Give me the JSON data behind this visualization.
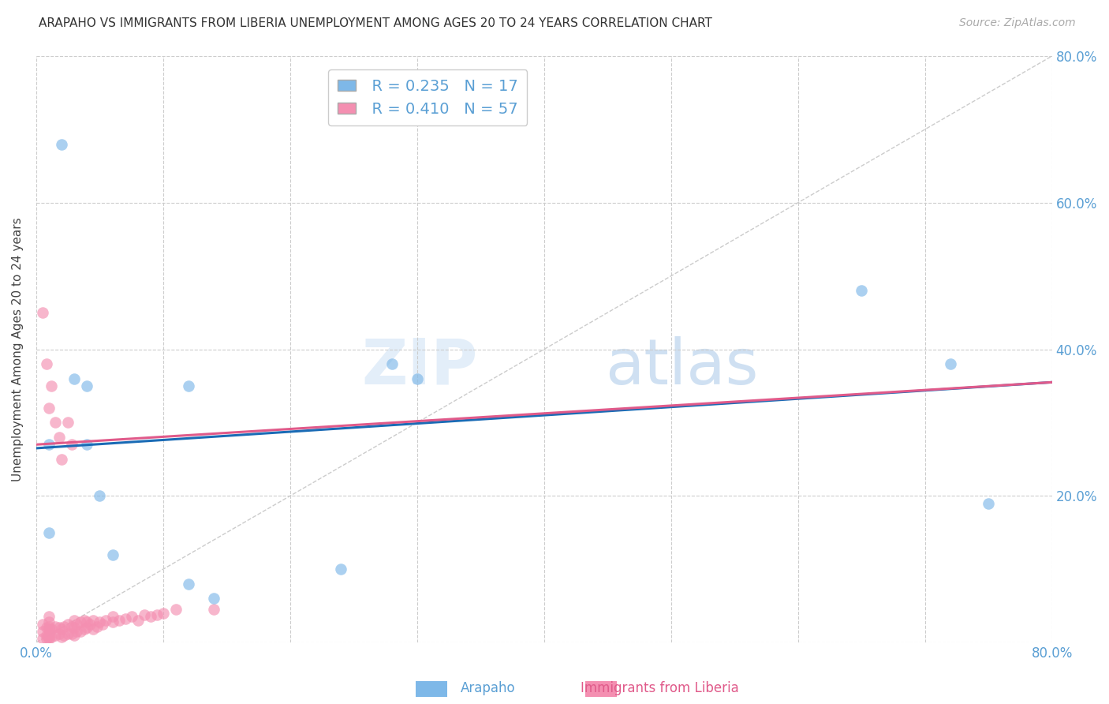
{
  "title": "ARAPAHO VS IMMIGRANTS FROM LIBERIA UNEMPLOYMENT AMONG AGES 20 TO 24 YEARS CORRELATION CHART",
  "source": "Source: ZipAtlas.com",
  "ylabel": "Unemployment Among Ages 20 to 24 years",
  "xlim": [
    0.0,
    0.8
  ],
  "ylim": [
    0.0,
    0.8
  ],
  "xticks": [
    0.0,
    0.1,
    0.2,
    0.3,
    0.4,
    0.5,
    0.6,
    0.7,
    0.8
  ],
  "yticks_right": [
    0.0,
    0.2,
    0.4,
    0.6,
    0.8
  ],
  "ytick_labels_right": [
    "",
    "20.0%",
    "40.0%",
    "60.0%",
    "80.0%"
  ],
  "color_arapaho": "#7eb8e8",
  "color_liberia": "#f48fb1",
  "color_line_arapaho": "#1a6bb5",
  "color_line_liberia": "#e05a8a",
  "legend_r_arapaho": "R = 0.235",
  "legend_n_arapaho": "N = 17",
  "legend_r_liberia": "R = 0.410",
  "legend_n_liberia": "N = 57",
  "watermark_zip": "ZIP",
  "watermark_atlas": "atlas",
  "line_arapaho_x0": 0.0,
  "line_arapaho_y0": 0.265,
  "line_arapaho_x1": 0.8,
  "line_arapaho_y1": 0.355,
  "line_liberia_x0": 0.0,
  "line_liberia_y0": 0.27,
  "line_liberia_x1": 0.8,
  "line_liberia_y1": 0.355,
  "arapaho_x": [
    0.01,
    0.02,
    0.03,
    0.04,
    0.04,
    0.05,
    0.06,
    0.12,
    0.12,
    0.14,
    0.28,
    0.3,
    0.65,
    0.75,
    0.72,
    0.24,
    0.01
  ],
  "arapaho_y": [
    0.27,
    0.68,
    0.36,
    0.35,
    0.27,
    0.2,
    0.12,
    0.35,
    0.08,
    0.06,
    0.38,
    0.36,
    0.48,
    0.19,
    0.38,
    0.1,
    0.15
  ],
  "liberia_x": [
    0.005,
    0.005,
    0.005,
    0.008,
    0.008,
    0.008,
    0.01,
    0.01,
    0.01,
    0.01,
    0.01,
    0.01,
    0.01,
    0.012,
    0.012,
    0.015,
    0.015,
    0.018,
    0.018,
    0.02,
    0.02,
    0.022,
    0.022,
    0.025,
    0.025,
    0.028,
    0.028,
    0.03,
    0.03,
    0.03,
    0.032,
    0.032,
    0.035,
    0.035,
    0.038,
    0.038,
    0.04,
    0.04,
    0.042,
    0.045,
    0.045,
    0.048,
    0.05,
    0.052,
    0.055,
    0.06,
    0.06,
    0.065,
    0.07,
    0.075,
    0.08,
    0.085,
    0.09,
    0.095,
    0.1,
    0.11,
    0.14
  ],
  "liberia_y": [
    0.005,
    0.015,
    0.025,
    0.005,
    0.01,
    0.02,
    0.005,
    0.008,
    0.012,
    0.018,
    0.022,
    0.028,
    0.035,
    0.008,
    0.018,
    0.01,
    0.022,
    0.012,
    0.02,
    0.008,
    0.018,
    0.01,
    0.022,
    0.012,
    0.025,
    0.012,
    0.022,
    0.01,
    0.02,
    0.03,
    0.015,
    0.025,
    0.015,
    0.028,
    0.018,
    0.03,
    0.02,
    0.028,
    0.025,
    0.018,
    0.03,
    0.022,
    0.028,
    0.025,
    0.03,
    0.028,
    0.035,
    0.03,
    0.032,
    0.035,
    0.03,
    0.038,
    0.035,
    0.038,
    0.04,
    0.045,
    0.045
  ],
  "liberia_high_x": [
    0.005,
    0.008,
    0.01,
    0.012,
    0.015,
    0.018,
    0.02,
    0.025,
    0.028
  ],
  "liberia_high_y": [
    0.45,
    0.38,
    0.32,
    0.35,
    0.3,
    0.28,
    0.25,
    0.3,
    0.27
  ],
  "background_color": "#ffffff"
}
